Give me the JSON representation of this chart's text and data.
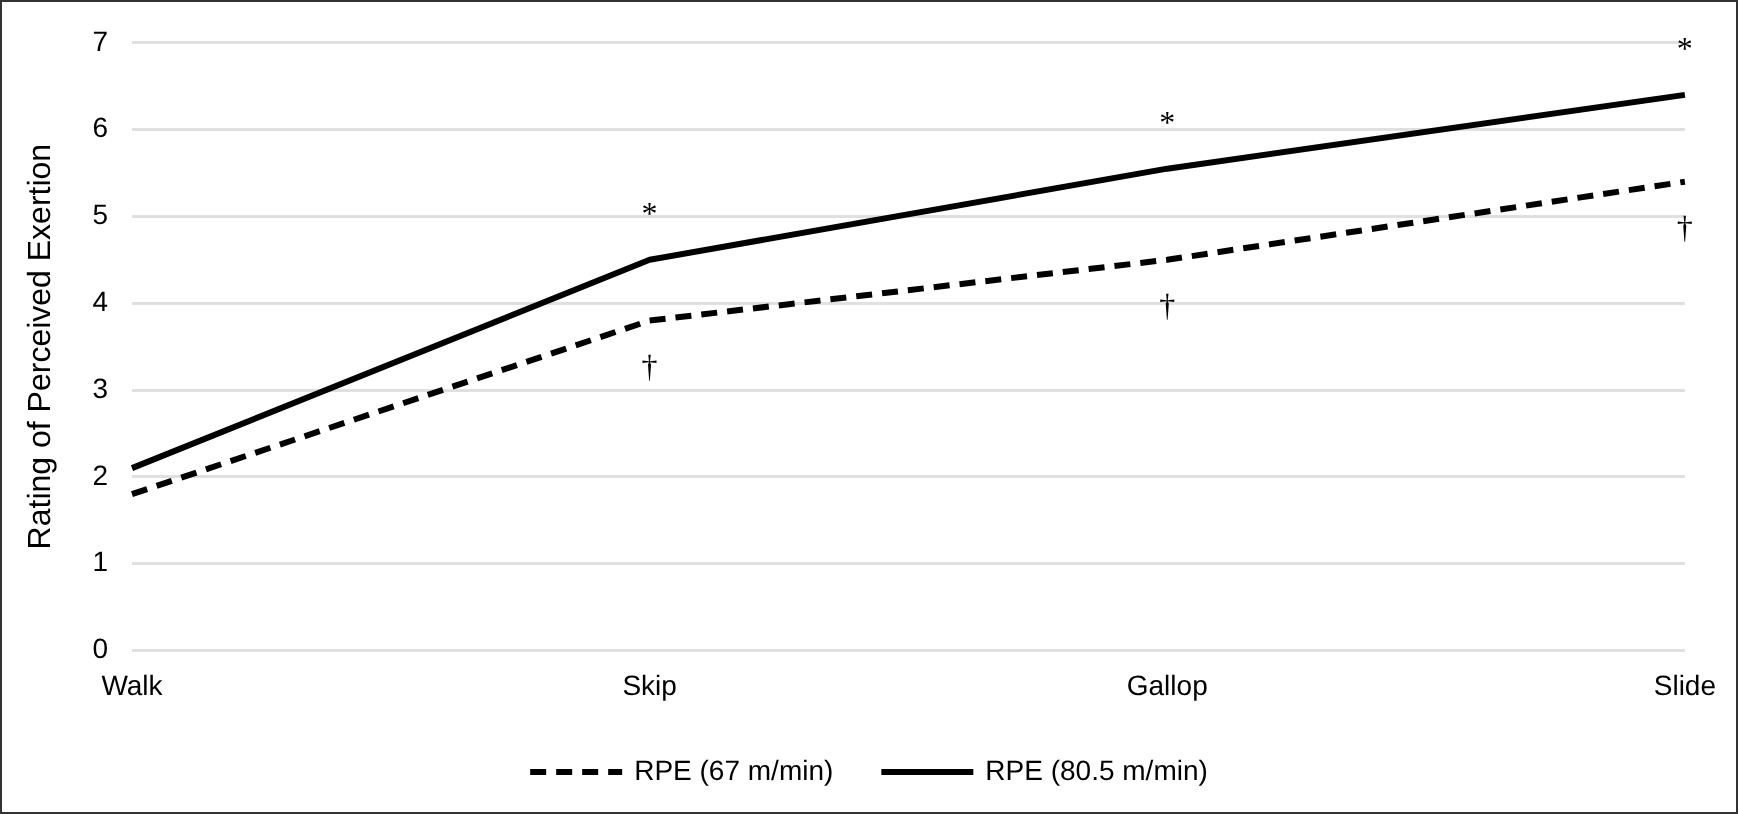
{
  "chart_data": {
    "type": "line",
    "ylabel": "Rating of Perceived Exertion",
    "categories": [
      "Walk",
      "Skip",
      "Gallop",
      "Slide"
    ],
    "series": [
      {
        "name": "RPE (67 m/min)",
        "color": "#000000",
        "line_style": "dashed",
        "values": [
          1.8,
          3.8,
          4.5,
          5.4
        ]
      },
      {
        "name": "RPE (80.5 m/min)",
        "color": "#000000",
        "line_style": "solid",
        "values": [
          2.1,
          4.5,
          5.55,
          6.4
        ]
      }
    ],
    "ylim": [
      0,
      7
    ],
    "yticks": [
      0,
      1,
      2,
      3,
      4,
      5,
      6,
      7
    ],
    "grid": "y",
    "legend": "bottom",
    "marker": "none",
    "annotations": [
      "*",
      "*",
      "*",
      "†",
      "†",
      "†"
    ]
  }
}
